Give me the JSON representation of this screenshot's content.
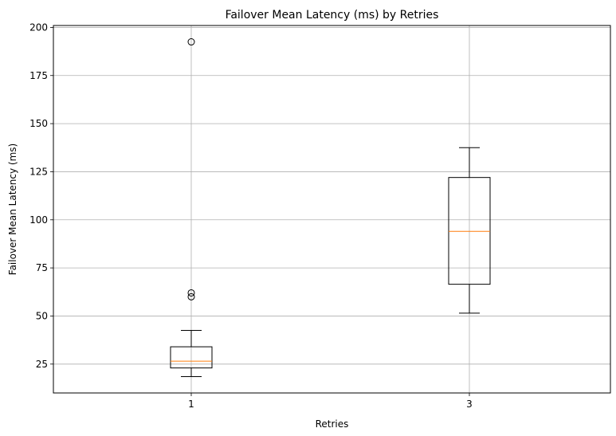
{
  "chart_data": {
    "type": "box",
    "title": "Failover Mean Latency (ms) by Retries",
    "xlabel": "Retries",
    "ylabel": "Failover Mean Latency (ms)",
    "categories": [
      "1",
      "3"
    ],
    "ylim": [
      10,
      201
    ],
    "yticks": [
      25,
      50,
      75,
      100,
      125,
      150,
      175,
      200
    ],
    "grid": true,
    "boxes": [
      {
        "category": "1",
        "whisker_low": 18.5,
        "q1": 23,
        "median": 26.5,
        "q3": 34,
        "whisker_high": 42.5,
        "outliers": [
          60,
          62,
          192.5
        ]
      },
      {
        "category": "3",
        "whisker_low": 51.5,
        "q1": 66.5,
        "median": 94,
        "q3": 122,
        "whisker_high": 137.5,
        "outliers": []
      }
    ],
    "colors": {
      "box": "#000000",
      "median": "#ff7f0e",
      "grid": "#b0b0b0"
    }
  }
}
